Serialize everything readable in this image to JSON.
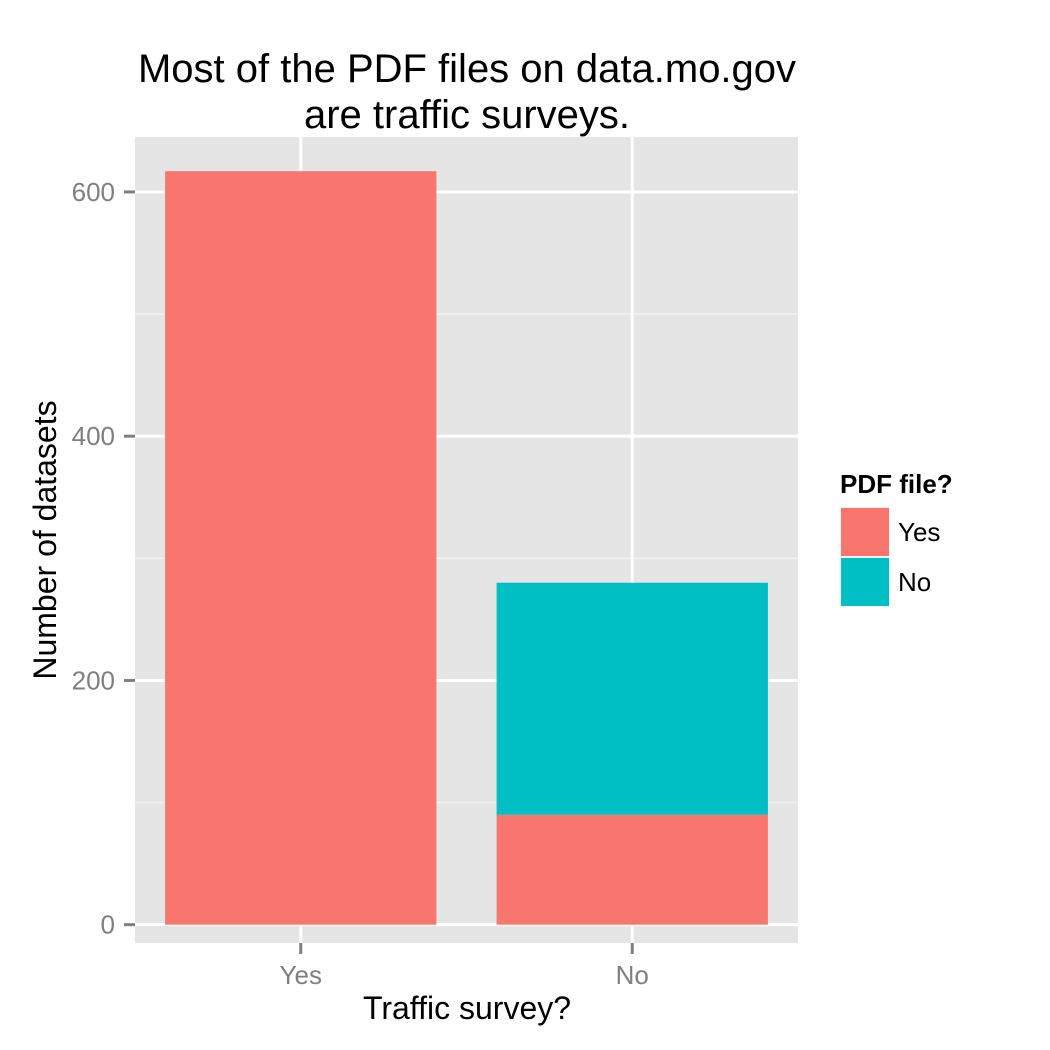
{
  "chart_data": {
    "type": "bar",
    "stacked": true,
    "title_lines": [
      "Most of the PDF files on data.mo.gov",
      "are traffic surveys."
    ],
    "xlabel": "Traffic survey?",
    "ylabel": "Number of datasets",
    "categories": [
      "Yes",
      "No"
    ],
    "series": [
      {
        "name": "Yes",
        "color": "#F8766D",
        "values": [
          617,
          90
        ]
      },
      {
        "name": "No",
        "color": "#00BFC4",
        "values": [
          0,
          190
        ]
      }
    ],
    "ylim": [
      -15,
      645
    ],
    "yticks": [
      0,
      200,
      400,
      600
    ],
    "legend": {
      "title": "PDF file?",
      "position": "right"
    },
    "grid": true,
    "panel_color": "#E5E5E5"
  }
}
